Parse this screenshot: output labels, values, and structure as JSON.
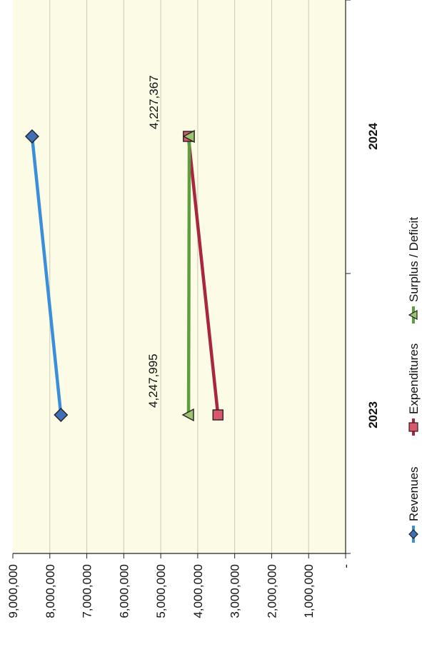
{
  "chart_data": {
    "type": "line",
    "orientation": "rotated-90-ccw",
    "categories": [
      "2023",
      "2024"
    ],
    "series": [
      {
        "name": "Revenues",
        "values": [
          7700000,
          8480000
        ],
        "color": "#3a8fd8",
        "marker": "diamond",
        "marker_color": "#3f6fb5"
      },
      {
        "name": "Expenditures",
        "values": [
          3452005,
          4253000
        ],
        "color": "#a8263f",
        "marker": "square",
        "marker_color": "#d9576a"
      },
      {
        "name": "Surplus / Deficit",
        "values": [
          4247995,
          4227367
        ],
        "color": "#5f9e3e",
        "marker": "triangle",
        "marker_color": "#9cc36d"
      }
    ],
    "data_labels": [
      {
        "series": "Surplus / Deficit",
        "category": "2023",
        "text": "4,247,995"
      },
      {
        "series": "Surplus / Deficit",
        "category": "2024",
        "text": "4,227,367"
      }
    ],
    "y_ticks": [
      "9,000,000",
      "8,000,000",
      "7,000,000",
      "6,000,000",
      "5,000,000",
      "4,000,000",
      "3,000,000",
      "2,000,000",
      "1,000,000",
      "-"
    ],
    "y_tick_values": [
      9000000,
      8000000,
      7000000,
      6000000,
      5000000,
      4000000,
      3000000,
      2000000,
      1000000,
      0
    ],
    "ylim": [
      0,
      9000000
    ],
    "grid": true,
    "legend": "bottom",
    "plot_background": "#fbfbe6"
  }
}
